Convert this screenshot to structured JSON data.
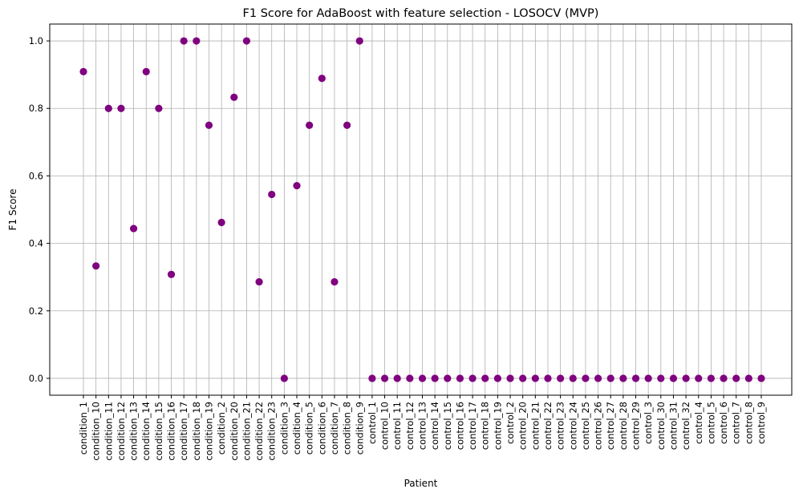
{
  "chart_data": {
    "type": "scatter",
    "title": "F1 Score for AdaBoost with feature selection - LOSOCV (MVP)",
    "xlabel": "Patient",
    "ylabel": "F1 Score",
    "ylim": [
      -0.05,
      1.05
    ],
    "yticks": [
      "0.0",
      "0.2",
      "0.4",
      "0.6",
      "0.8",
      "1.0"
    ],
    "grid": true,
    "marker_color": "#800080",
    "categories": [
      "condition_1",
      "condition_10",
      "condition_11",
      "condition_12",
      "condition_13",
      "condition_14",
      "condition_15",
      "condition_16",
      "condition_17",
      "condition_18",
      "condition_19",
      "condition_2",
      "condition_20",
      "condition_21",
      "condition_22",
      "condition_23",
      "condition_3",
      "condition_4",
      "condition_5",
      "condition_6",
      "condition_7",
      "condition_8",
      "condition_9",
      "control_1",
      "control_10",
      "control_11",
      "control_12",
      "control_13",
      "control_14",
      "control_15",
      "control_16",
      "control_17",
      "control_18",
      "control_19",
      "control_2",
      "control_20",
      "control_21",
      "control_22",
      "control_23",
      "control_24",
      "control_25",
      "control_26",
      "control_27",
      "control_28",
      "control_29",
      "control_3",
      "control_30",
      "control_31",
      "control_32",
      "control_4",
      "control_5",
      "control_6",
      "control_7",
      "control_8",
      "control_9"
    ],
    "values": [
      0.909,
      0.333,
      0.8,
      0.8,
      0.444,
      0.909,
      0.8,
      0.308,
      1.0,
      1.0,
      0.75,
      0.462,
      0.833,
      1.0,
      0.286,
      0.545,
      0.0,
      0.571,
      0.75,
      0.889,
      0.286,
      0.75,
      1.0,
      0,
      0,
      0,
      0,
      0,
      0,
      0,
      0,
      0,
      0,
      0,
      0,
      0,
      0,
      0,
      0,
      0,
      0,
      0,
      0,
      0,
      0,
      0,
      0,
      0,
      0,
      0,
      0,
      0,
      0,
      0,
      0
    ]
  }
}
